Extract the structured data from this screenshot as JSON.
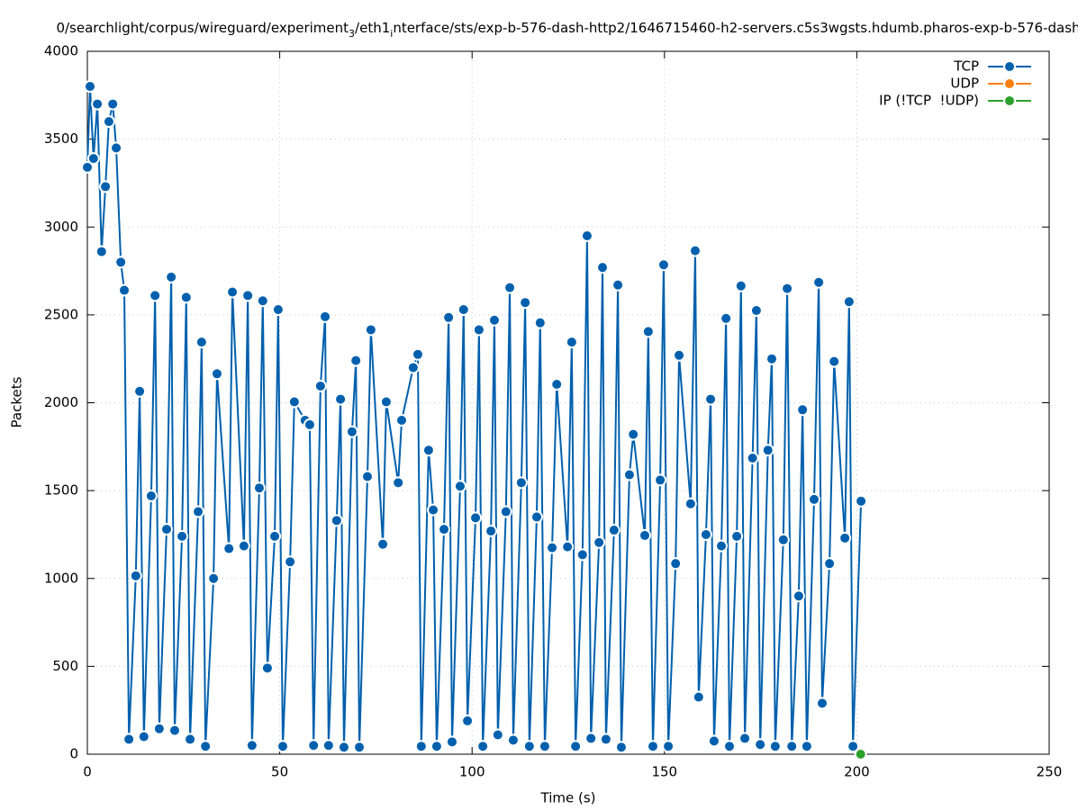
{
  "chart_data": {
    "type": "line",
    "title": [
      "0/searchlight/corpus/wireguard/experiment",
      "3",
      "/eth1",
      "i",
      "nterface/sts/exp-b-576-dash-http2/1646715460-h2-servers.c5s3wgsts.hdumb.pharos-exp-b-576-dash"
    ],
    "xlabel": "Time (s)",
    "ylabel": "Packets",
    "xlim": [
      0,
      250
    ],
    "xticks": [
      0,
      50,
      100,
      150,
      200,
      250
    ],
    "ylim": [
      0,
      4000
    ],
    "yticks": [
      0,
      500,
      1000,
      1500,
      2000,
      2500,
      3000,
      3500,
      4000
    ],
    "grid": true,
    "legend": "top-right",
    "series": [
      {
        "name": "TCP",
        "color": "#0060ad",
        "x": [
          0,
          0.7,
          1.6,
          2.6,
          3.7,
          4.7,
          5.6,
          6.6,
          7.5,
          8.7,
          9.6,
          10.8,
          12.6,
          13.6,
          14.7,
          16.6,
          17.6,
          18.7,
          20.6,
          21.8,
          22.7,
          24.6,
          25.7,
          26.7,
          28.8,
          29.7,
          30.7,
          32.8,
          33.7,
          36.8,
          37.7,
          40.7,
          41.7,
          42.8,
          44.7,
          45.6,
          46.8,
          48.7,
          49.6,
          50.8,
          52.7,
          53.8,
          56.6,
          57.8,
          58.8,
          60.6,
          61.8,
          62.7,
          64.8,
          65.8,
          66.7,
          68.8,
          69.8,
          70.7,
          72.8,
          73.7,
          76.8,
          77.7,
          80.8,
          81.7,
          84.7,
          85.9,
          86.8,
          88.7,
          89.9,
          90.8,
          92.7,
          93.9,
          94.8,
          96.9,
          97.8,
          98.8,
          100.9,
          101.8,
          102.8,
          104.9,
          105.8,
          106.7,
          108.8,
          109.8,
          110.7,
          112.8,
          113.8,
          114.9,
          116.8,
          117.7,
          118.9,
          120.8,
          122.0,
          124.8,
          125.9,
          126.9,
          128.7,
          129.9,
          130.9,
          133.0,
          133.9,
          134.8,
          136.9,
          137.9,
          138.8,
          140.9,
          141.9,
          144.9,
          145.8,
          147.0,
          148.9,
          149.8,
          151.0,
          152.9,
          153.8,
          156.8,
          158.0,
          158.9,
          160.8,
          162.0,
          162.9,
          164.8,
          166.0,
          166.9,
          168.8,
          169.9,
          170.9,
          172.9,
          173.9,
          174.9,
          176.9,
          177.9,
          178.8,
          180.9,
          181.9,
          183.1,
          184.9,
          185.9,
          187.0,
          188.9,
          190.1,
          191.0,
          192.9,
          194.1,
          196.9,
          198.0,
          199.0,
          201.1
        ],
        "values": [
          3340,
          3800,
          3390,
          3700,
          2860,
          3230,
          3600,
          3700,
          3450,
          2800,
          2640,
          85,
          1015,
          2065,
          100,
          1470,
          2610,
          145,
          1280,
          2715,
          135,
          1240,
          2600,
          85,
          1380,
          2345,
          45,
          1000,
          2165,
          1170,
          2630,
          1185,
          2610,
          50,
          1515,
          2580,
          490,
          1240,
          2530,
          45,
          1095,
          2005,
          1900,
          1875,
          50,
          2095,
          2490,
          50,
          1330,
          2020,
          40,
          1835,
          2240,
          40,
          1580,
          2415,
          1195,
          2005,
          1545,
          1900,
          2200,
          2275,
          45,
          1730,
          1390,
          45,
          1280,
          2485,
          70,
          1525,
          2530,
          190,
          1345,
          2415,
          45,
          1270,
          2470,
          110,
          1380,
          2655,
          80,
          1545,
          2570,
          45,
          1350,
          2455,
          45,
          1175,
          2105,
          1180,
          2345,
          45,
          1135,
          2950,
          90,
          1205,
          2770,
          85,
          1275,
          2670,
          40,
          1590,
          1820,
          1245,
          2405,
          45,
          1560,
          2785,
          45,
          1085,
          2270,
          1425,
          2865,
          325,
          1250,
          2020,
          75,
          1185,
          2480,
          45,
          1240,
          2665,
          90,
          1685,
          2525,
          55,
          1730,
          2250,
          45,
          1220,
          2650,
          45,
          900,
          1960,
          45,
          1450,
          2685,
          290,
          1085,
          2235,
          1230,
          2575,
          45,
          1440
        ]
      },
      {
        "name": "UDP",
        "color": "#ff7f0e",
        "x": [],
        "values": []
      },
      {
        "name": "IP (!TCP  !UDP)",
        "color": "#2ca02c",
        "x": [
          201
        ],
        "values": [
          0
        ]
      }
    ]
  }
}
